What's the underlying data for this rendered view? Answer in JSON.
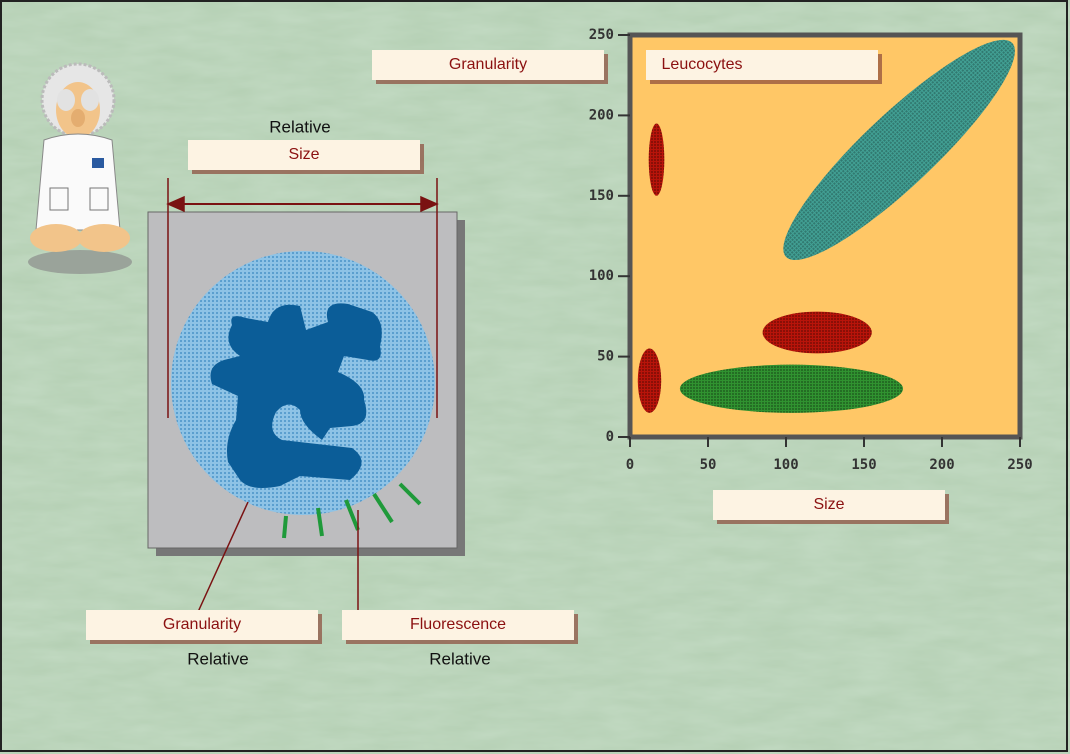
{
  "cell_diagram": {
    "size_label": {
      "top": "Relative",
      "box": "Size"
    },
    "granularity_label": {
      "box": "Granularity",
      "bottom": "Relative"
    },
    "fluorescence_label": {
      "box": "Fluorescence",
      "bottom": "Relative"
    }
  },
  "plot": {
    "title": "Leucocytes",
    "x_label": "Size",
    "y_label": "Granularity",
    "xlim": [
      0,
      250
    ],
    "ylim": [
      0,
      250
    ],
    "xticks": [
      0,
      50,
      100,
      150,
      200,
      250
    ],
    "yticks": [
      0,
      50,
      100,
      150,
      200,
      250
    ],
    "clusters": [
      {
        "color": "#2e9c9a",
        "x": [
          100,
          245
        ],
        "y": [
          112,
          245
        ]
      },
      {
        "color": "#b00000",
        "x": [
          85,
          155
        ],
        "y": [
          52,
          78
        ]
      },
      {
        "color": "#1a8c2a",
        "x": [
          32,
          175
        ],
        "y": [
          15,
          45
        ]
      },
      {
        "color": "#b00000",
        "x": [
          5,
          20
        ],
        "y": [
          15,
          55
        ]
      },
      {
        "color": "#b00000",
        "x": [
          12,
          22
        ],
        "y": [
          150,
          195
        ]
      }
    ]
  }
}
